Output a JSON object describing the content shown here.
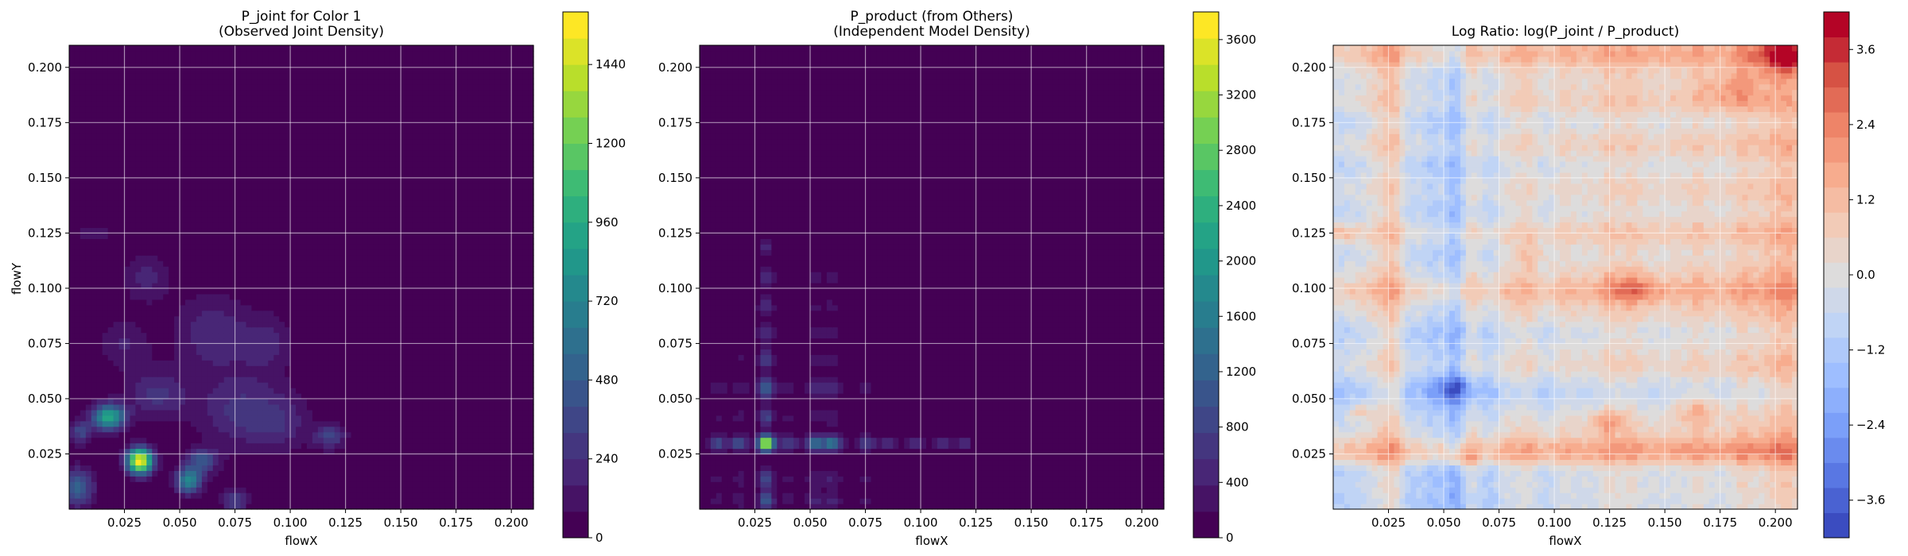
{
  "figure": {
    "panels": 3
  },
  "chart_data": [
    {
      "type": "heatmap",
      "title_lines": [
        "P_joint for Color 1",
        "(Observed Joint Density)"
      ],
      "xlabel": "flowX",
      "ylabel": "flowY",
      "xlim": [
        0.0,
        0.21
      ],
      "ylim": [
        0.0,
        0.21
      ],
      "x_ticks": [
        "0.025",
        "0.050",
        "0.075",
        "0.100",
        "0.125",
        "0.150",
        "0.175",
        "0.200"
      ],
      "y_ticks": [
        "0.025",
        "0.050",
        "0.075",
        "0.100",
        "0.125",
        "0.150",
        "0.175",
        "0.200"
      ],
      "grid": true,
      "colormap": "viridis",
      "colorbar": {
        "min": 0,
        "max": 1600,
        "ticks": [
          "0",
          "240",
          "480",
          "720",
          "960",
          "1200",
          "1440"
        ]
      },
      "blobs": [
        {
          "x": 0.032,
          "y": 0.022,
          "peak": 1600,
          "sx": 0.004,
          "sy": 0.004
        },
        {
          "x": 0.018,
          "y": 0.042,
          "peak": 950,
          "sx": 0.005,
          "sy": 0.004
        },
        {
          "x": 0.054,
          "y": 0.013,
          "peak": 750,
          "sx": 0.004,
          "sy": 0.004
        },
        {
          "x": 0.004,
          "y": 0.01,
          "peak": 500,
          "sx": 0.005,
          "sy": 0.006
        },
        {
          "x": 0.06,
          "y": 0.022,
          "peak": 420,
          "sx": 0.005,
          "sy": 0.004
        },
        {
          "x": 0.005,
          "y": 0.035,
          "peak": 350,
          "sx": 0.004,
          "sy": 0.004
        },
        {
          "x": 0.075,
          "y": 0.004,
          "peak": 320,
          "sx": 0.004,
          "sy": 0.004
        },
        {
          "x": 0.118,
          "y": 0.033,
          "peak": 330,
          "sx": 0.005,
          "sy": 0.004
        },
        {
          "x": 0.04,
          "y": 0.052,
          "peak": 260,
          "sx": 0.01,
          "sy": 0.008
        },
        {
          "x": 0.075,
          "y": 0.045,
          "peak": 240,
          "sx": 0.012,
          "sy": 0.012
        },
        {
          "x": 0.095,
          "y": 0.04,
          "peak": 220,
          "sx": 0.01,
          "sy": 0.01
        },
        {
          "x": 0.065,
          "y": 0.08,
          "peak": 230,
          "sx": 0.012,
          "sy": 0.012
        },
        {
          "x": 0.035,
          "y": 0.105,
          "peak": 190,
          "sx": 0.008,
          "sy": 0.008
        },
        {
          "x": 0.01,
          "y": 0.125,
          "peak": 150,
          "sx": 0.006,
          "sy": 0.003
        },
        {
          "x": 0.09,
          "y": 0.075,
          "peak": 180,
          "sx": 0.008,
          "sy": 0.01
        },
        {
          "x": 0.025,
          "y": 0.075,
          "peak": 170,
          "sx": 0.008,
          "sy": 0.008
        }
      ]
    },
    {
      "type": "heatmap",
      "title_lines": [
        "P_product (from Others)",
        "(Independent Model Density)"
      ],
      "xlabel": "flowX",
      "ylabel": "",
      "xlim": [
        0.0,
        0.21
      ],
      "ylim": [
        0.0,
        0.21
      ],
      "x_ticks": [
        "0.025",
        "0.050",
        "0.075",
        "0.100",
        "0.125",
        "0.150",
        "0.175",
        "0.200"
      ],
      "y_ticks": [
        "0.025",
        "0.050",
        "0.075",
        "0.100",
        "0.125",
        "0.150",
        "0.175",
        "0.200"
      ],
      "grid": true,
      "colormap": "viridis",
      "colorbar": {
        "min": 0,
        "max": 3800,
        "ticks": [
          "0",
          "400",
          "800",
          "1200",
          "1600",
          "2000",
          "2400",
          "2800",
          "3200",
          "3600"
        ]
      },
      "marginal_x": [
        {
          "at": 0.03,
          "w": 0.0025,
          "a": 60
        },
        {
          "at": 0.008,
          "w": 0.003,
          "a": 14
        },
        {
          "at": 0.018,
          "w": 0.003,
          "a": 16
        },
        {
          "at": 0.04,
          "w": 0.003,
          "a": 14
        },
        {
          "at": 0.052,
          "w": 0.003,
          "a": 22
        },
        {
          "at": 0.06,
          "w": 0.003,
          "a": 24
        },
        {
          "at": 0.075,
          "w": 0.003,
          "a": 12
        },
        {
          "at": 0.085,
          "w": 0.003,
          "a": 9
        },
        {
          "at": 0.098,
          "w": 0.003,
          "a": 8
        },
        {
          "at": 0.11,
          "w": 0.003,
          "a": 7
        },
        {
          "at": 0.12,
          "w": 0.003,
          "a": 8
        }
      ],
      "marginal_y": [
        {
          "at": 0.03,
          "w": 0.0025,
          "a": 62
        },
        {
          "at": 0.004,
          "w": 0.003,
          "a": 18
        },
        {
          "at": 0.014,
          "w": 0.003,
          "a": 16
        },
        {
          "at": 0.042,
          "w": 0.003,
          "a": 14
        },
        {
          "at": 0.055,
          "w": 0.003,
          "a": 22
        },
        {
          "at": 0.068,
          "w": 0.003,
          "a": 12
        },
        {
          "at": 0.08,
          "w": 0.003,
          "a": 10
        },
        {
          "at": 0.092,
          "w": 0.003,
          "a": 9
        },
        {
          "at": 0.105,
          "w": 0.003,
          "a": 9
        },
        {
          "at": 0.118,
          "w": 0.003,
          "a": 7
        }
      ]
    },
    {
      "type": "heatmap",
      "title_lines": [
        "Log Ratio: log(P_joint / P_product)"
      ],
      "xlabel": "flowX",
      "ylabel": "",
      "xlim": [
        0.0,
        0.21
      ],
      "ylim": [
        0.0,
        0.21
      ],
      "x_ticks": [
        "0.025",
        "0.050",
        "0.075",
        "0.100",
        "0.125",
        "0.150",
        "0.175",
        "0.200"
      ],
      "y_ticks": [
        "0.025",
        "0.050",
        "0.075",
        "0.100",
        "0.125",
        "0.150",
        "0.175",
        "0.200"
      ],
      "grid": true,
      "colormap": "coolwarm",
      "colorbar": {
        "min": -4.2,
        "max": 4.2,
        "ticks": [
          "−3.6",
          "−2.4",
          "−1.2",
          "0.0",
          "1.2",
          "2.4",
          "3.6"
        ]
      },
      "col_effects": [
        {
          "at": 0.003,
          "v": -0.5
        },
        {
          "at": 0.012,
          "v": -0.2
        },
        {
          "at": 0.02,
          "v": 0.3
        },
        {
          "at": 0.027,
          "v": 0.9
        },
        {
          "at": 0.035,
          "v": -0.6
        },
        {
          "at": 0.045,
          "v": -0.9
        },
        {
          "at": 0.055,
          "v": -1.5
        },
        {
          "at": 0.063,
          "v": 0.3
        },
        {
          "at": 0.07,
          "v": -0.6
        },
        {
          "at": 0.08,
          "v": 0.2
        },
        {
          "at": 0.088,
          "v": 0.5
        },
        {
          "at": 0.096,
          "v": -0.2
        },
        {
          "at": 0.105,
          "v": 0.4
        },
        {
          "at": 0.115,
          "v": 0.2
        },
        {
          "at": 0.125,
          "v": 0.7
        },
        {
          "at": 0.135,
          "v": 0.7
        },
        {
          "at": 0.145,
          "v": 0.3
        },
        {
          "at": 0.155,
          "v": 0.4
        },
        {
          "at": 0.165,
          "v": 0.7
        },
        {
          "at": 0.175,
          "v": 0.4
        },
        {
          "at": 0.185,
          "v": 0.9
        },
        {
          "at": 0.193,
          "v": 0.6
        },
        {
          "at": 0.2,
          "v": 1.0
        },
        {
          "at": 0.207,
          "v": 1.2
        }
      ],
      "row_effects": [
        {
          "at": 0.003,
          "v": -0.6
        },
        {
          "at": 0.01,
          "v": -0.3
        },
        {
          "at": 0.017,
          "v": -0.5
        },
        {
          "at": 0.025,
          "v": 1.2
        },
        {
          "at": 0.03,
          "v": 0.6
        },
        {
          "at": 0.038,
          "v": 0.0
        },
        {
          "at": 0.045,
          "v": -0.3
        },
        {
          "at": 0.052,
          "v": -0.8
        },
        {
          "at": 0.058,
          "v": -0.4
        },
        {
          "at": 0.065,
          "v": 0.2
        },
        {
          "at": 0.072,
          "v": -0.2
        },
        {
          "at": 0.08,
          "v": -0.5
        },
        {
          "at": 0.088,
          "v": 0.1
        },
        {
          "at": 0.095,
          "v": 0.4
        },
        {
          "at": 0.1,
          "v": 0.9
        },
        {
          "at": 0.108,
          "v": 0.2
        },
        {
          "at": 0.115,
          "v": -0.2
        },
        {
          "at": 0.125,
          "v": 0.5
        },
        {
          "at": 0.135,
          "v": -0.3
        },
        {
          "at": 0.145,
          "v": 0.1
        },
        {
          "at": 0.155,
          "v": -0.4
        },
        {
          "at": 0.165,
          "v": 0.3
        },
        {
          "at": 0.175,
          "v": -0.3
        },
        {
          "at": 0.185,
          "v": 0.4
        },
        {
          "at": 0.195,
          "v": 0.1
        },
        {
          "at": 0.203,
          "v": 0.6
        },
        {
          "at": 0.208,
          "v": 0.9
        }
      ],
      "hotspots": [
        {
          "x": 0.135,
          "y": 0.1,
          "v": 1.4,
          "s": 0.008
        },
        {
          "x": 0.165,
          "y": 0.045,
          "v": 1.2,
          "s": 0.008
        },
        {
          "x": 0.124,
          "y": 0.04,
          "v": 1.5,
          "s": 0.006
        },
        {
          "x": 0.205,
          "y": 0.205,
          "v": 2.2,
          "s": 0.01
        },
        {
          "x": 0.012,
          "y": 0.044,
          "v": 1.2,
          "s": 0.004
        },
        {
          "x": 0.003,
          "y": 0.125,
          "v": 1.2,
          "s": 0.005
        },
        {
          "x": 0.058,
          "y": 0.022,
          "v": 1.3,
          "s": 0.004
        },
        {
          "x": 0.055,
          "y": 0.055,
          "v": -1.8,
          "s": 0.007
        },
        {
          "x": 0.09,
          "y": 0.115,
          "v": 0.9,
          "s": 0.006
        },
        {
          "x": 0.18,
          "y": 0.19,
          "v": 1.2,
          "s": 0.01
        }
      ]
    }
  ]
}
